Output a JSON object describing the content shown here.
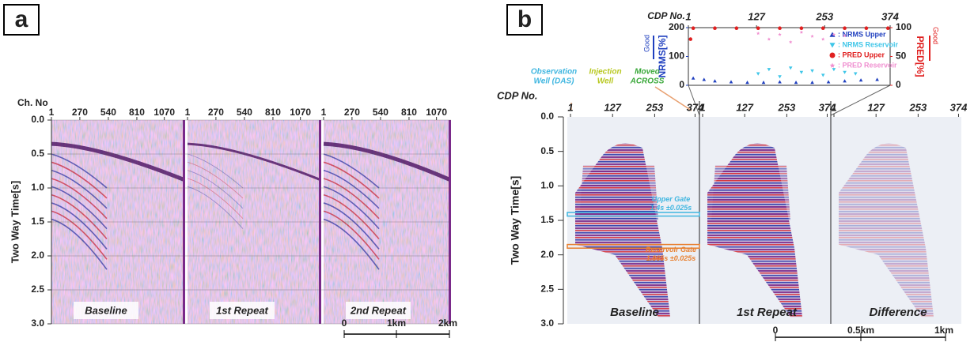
{
  "panel_a": {
    "label": "a",
    "x_axis_title": "Ch. No",
    "xlim": [
      1,
      1200
    ],
    "xticks": [
      1,
      270,
      540,
      810,
      1070
    ],
    "y_axis_title": "Two Way Time[s]",
    "ylim": [
      0,
      3
    ],
    "yticks": [
      {
        "value": 0,
        "label": "0.0"
      },
      {
        "value": 0.5,
        "label": "0.5"
      },
      {
        "value": 1,
        "label": "1.0"
      },
      {
        "value": 1.5,
        "label": "1.5"
      },
      {
        "value": 2,
        "label": "2.0"
      },
      {
        "value": 2.5,
        "label": "2.5"
      },
      {
        "value": 3,
        "label": "3.0"
      }
    ],
    "sections": [
      "Baseline",
      "1st Repeat",
      "2nd Repeat"
    ],
    "scale_bar": [
      "0",
      "1km",
      "2km"
    ]
  },
  "panel_b": {
    "label": "b",
    "x_axis_title": "CDP No.",
    "xlim": [
      1,
      380
    ],
    "xticks": [
      1,
      127,
      253,
      374
    ],
    "y_axis_title": "Two Way Time[s]",
    "ylim": [
      0,
      3
    ],
    "yticks": [
      {
        "value": 0,
        "label": "0.0"
      },
      {
        "value": 0.5,
        "label": "0.5"
      },
      {
        "value": 1,
        "label": "1.0"
      },
      {
        "value": 1.5,
        "label": "1.5"
      },
      {
        "value": 2,
        "label": "2.0"
      },
      {
        "value": 2.5,
        "label": "2.5"
      },
      {
        "value": 3,
        "label": "3.0"
      }
    ],
    "sections": [
      "Baseline",
      "1st Repeat",
      "Difference"
    ],
    "annotations": {
      "observation_well": [
        "Observation",
        "Well (DAS)"
      ],
      "injection_well": [
        "Injection",
        "Well"
      ],
      "moved_across": [
        "Moved",
        "ACROSS"
      ],
      "upper_gate": [
        "Upper Gate",
        "1.4s ±0.025s"
      ],
      "reservoir_gate": [
        "Reservoir Gate",
        "1.865s ±0.025s"
      ]
    },
    "scale_bar": [
      "0",
      "0.5km",
      "1km"
    ]
  },
  "inset": {
    "x_axis_title": "CDP No.",
    "xlim": [
      1,
      374
    ],
    "xticks": [
      1,
      127,
      253,
      374
    ],
    "y_axis_title": "NRMS[%]",
    "ylim": [
      0,
      200
    ],
    "yticks": [
      0,
      100,
      200
    ],
    "y_note": "Good",
    "y2_axis_title": "PRED[%]",
    "y2lim": [
      0,
      100
    ],
    "y2ticks": [
      0,
      50,
      100
    ],
    "y2_note": "Good",
    "series": [
      {
        "name": ": NRMS Upper",
        "color": "#1f3fbf",
        "marker": "triangle-up",
        "axis": "y",
        "x": [
          10,
          30,
          50,
          80,
          110,
          140,
          170,
          200,
          230,
          260,
          290,
          320,
          350
        ],
        "values": [
          25,
          20,
          15,
          12,
          10,
          10,
          12,
          10,
          10,
          12,
          15,
          18,
          20
        ]
      },
      {
        "name": ": NRMS Reservoir",
        "color": "#3fc6e8",
        "marker": "triangle-down",
        "axis": "y",
        "x": [
          130,
          150,
          170,
          190,
          210,
          230,
          250,
          270,
          290,
          310
        ],
        "values": [
          40,
          55,
          30,
          60,
          45,
          50,
          35,
          55,
          45,
          40
        ]
      },
      {
        "name": ": PRED Upper",
        "color": "#e02020",
        "marker": "circle",
        "axis": "y2",
        "x": [
          5,
          10,
          50,
          90,
          130,
          170,
          210,
          250,
          290,
          330,
          370
        ],
        "values": [
          80,
          99,
          99,
          99,
          99,
          99,
          99,
          99,
          99,
          99,
          99
        ]
      },
      {
        "name": ": PRED Reservoir",
        "color": "#f08fd0",
        "marker": "star",
        "axis": "y2",
        "x": [
          130,
          150,
          170,
          190,
          210,
          230,
          250,
          270,
          290
        ],
        "values": [
          90,
          80,
          88,
          75,
          92,
          85,
          80,
          88,
          86
        ]
      }
    ]
  }
}
